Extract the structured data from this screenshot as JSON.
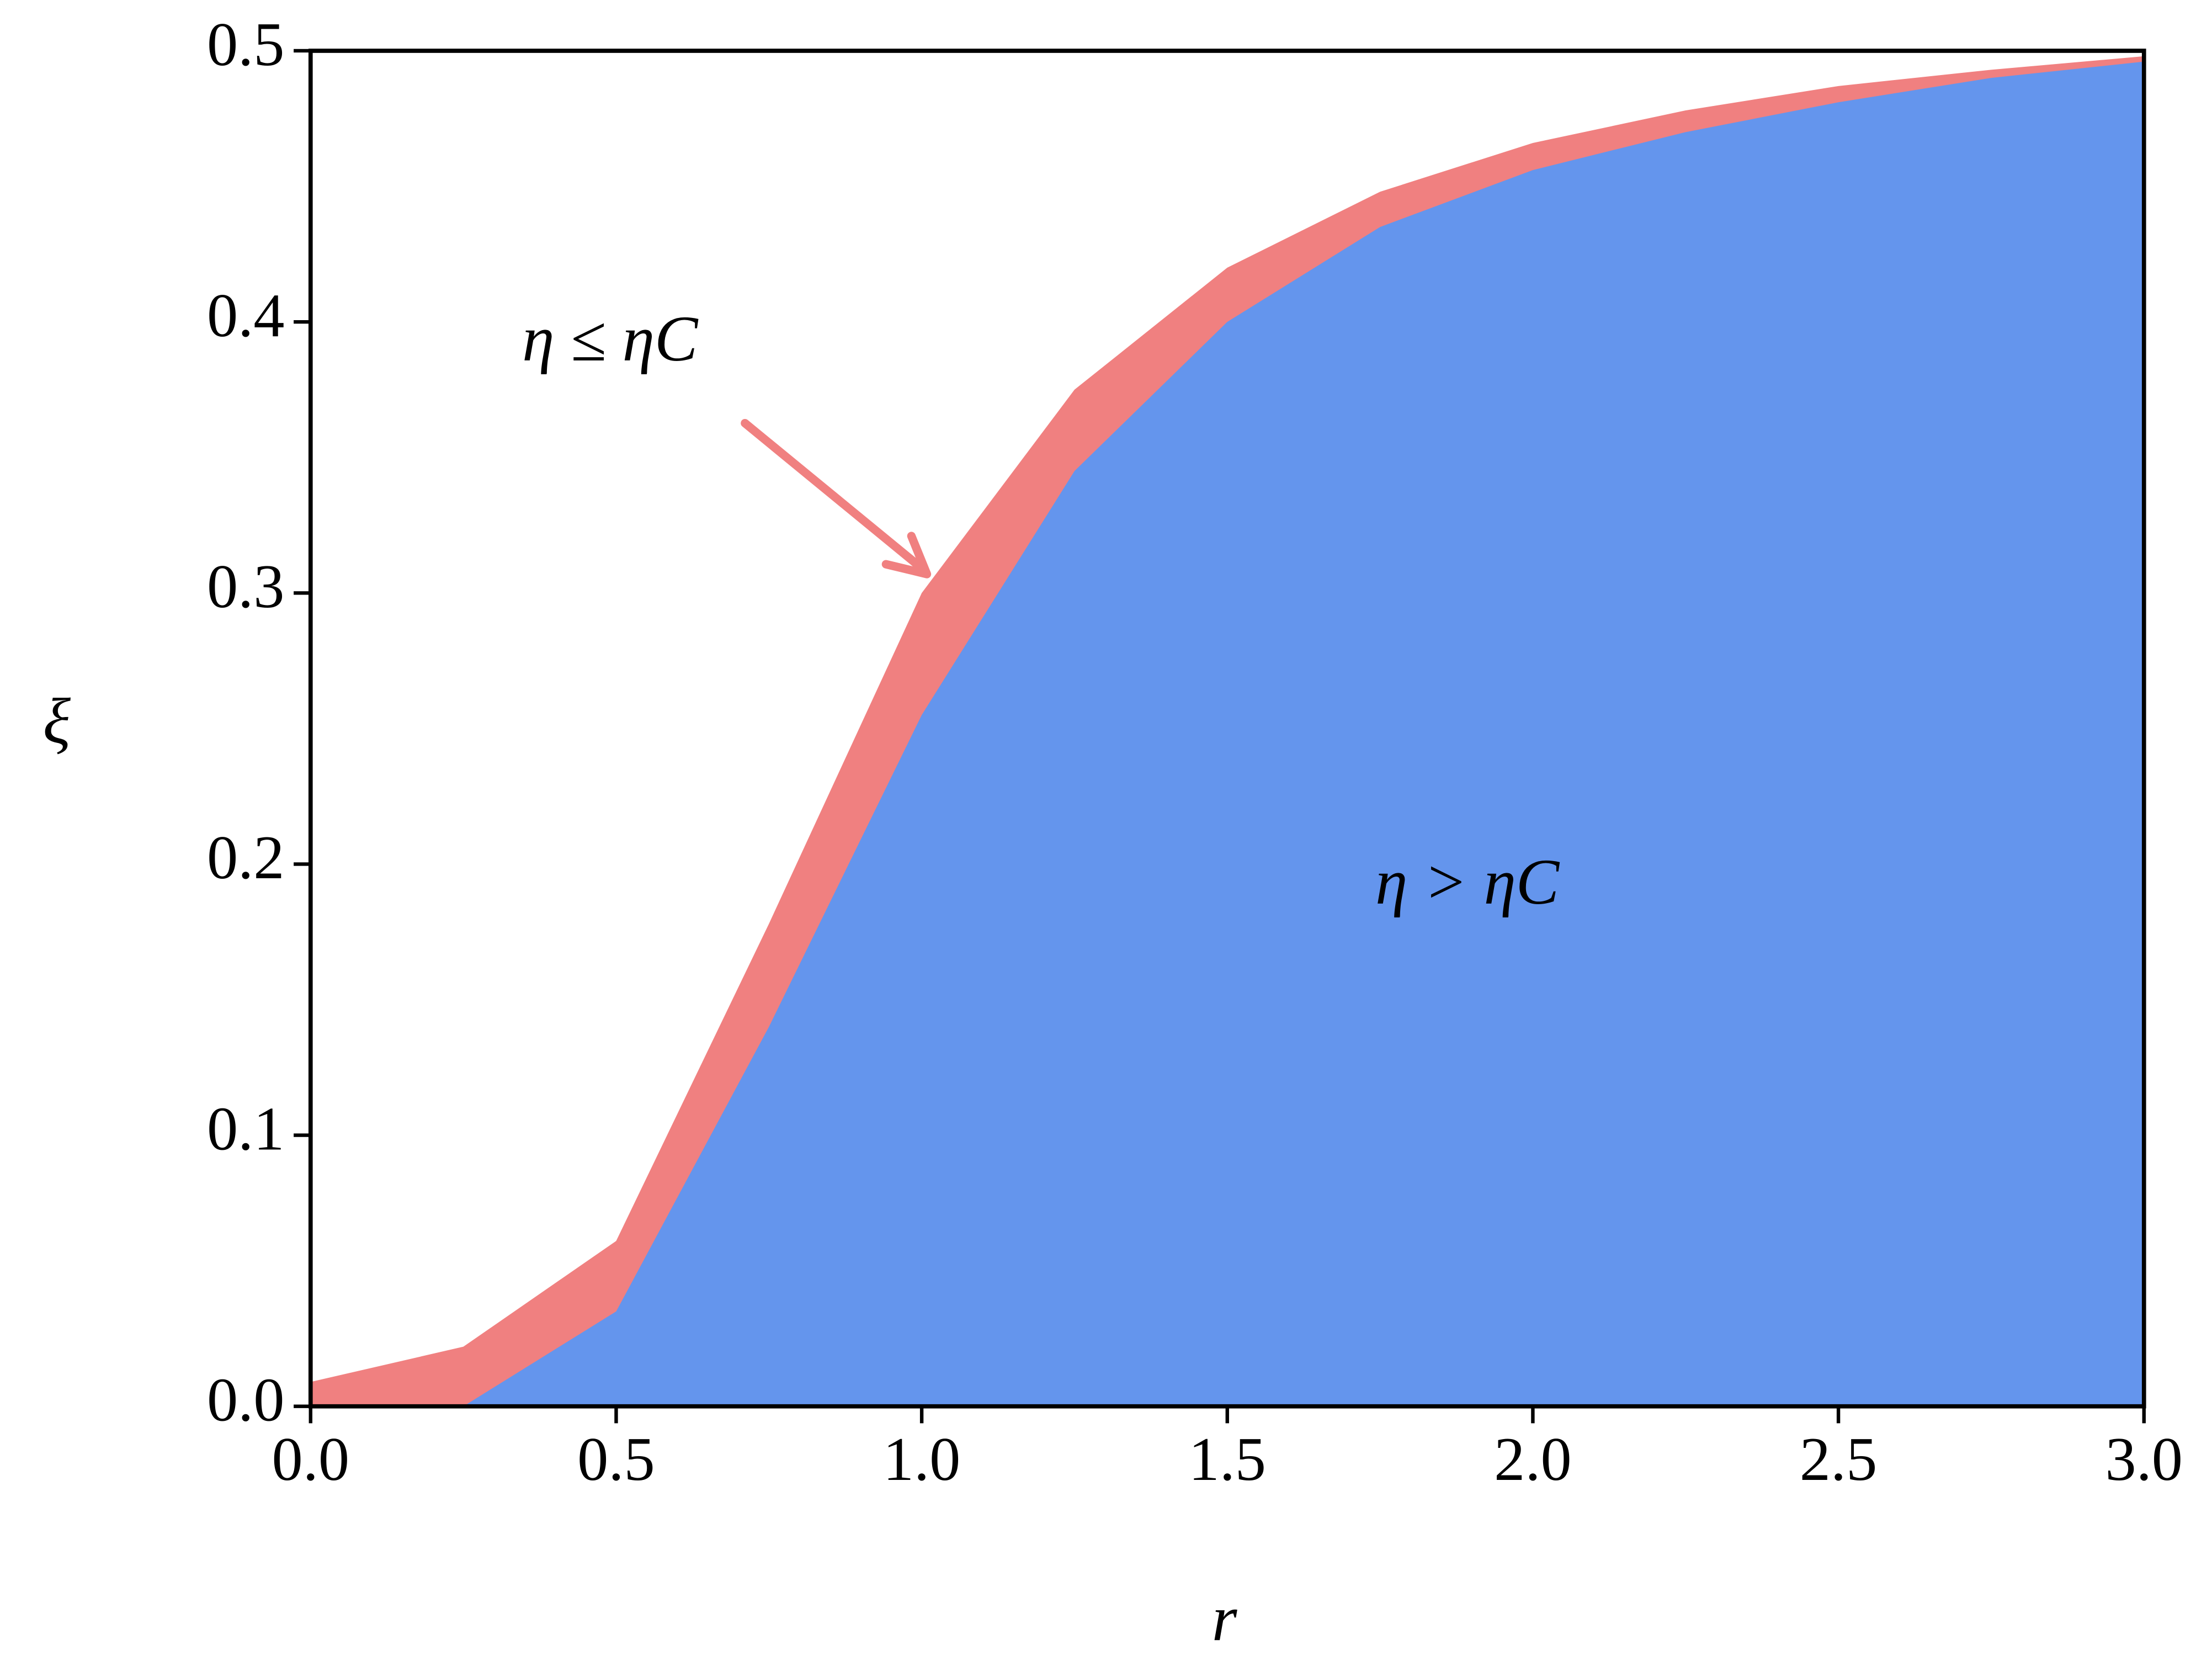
{
  "chart_data": {
    "type": "area",
    "x_label": "r",
    "y_label": "ξ",
    "x": [
      0,
      0.25,
      0.5,
      0.75,
      1.0,
      1.25,
      1.5,
      1.75,
      2.0,
      2.25,
      2.5,
      2.75,
      3.0
    ],
    "series": [
      {
        "color": "#f08080",
        "values": [
          0.009,
          0.022,
          0.061,
          0.178,
          0.3,
          0.375,
          0.42,
          0.448,
          0.466,
          0.478,
          0.487,
          0.493,
          0.498
        ]
      },
      {
        "color": "#6495ed",
        "values": [
          0,
          0,
          0.035,
          0.14,
          0.255,
          0.345,
          0.4,
          0.435,
          0.456,
          0.47,
          0.481,
          0.49,
          0.496
        ]
      }
    ],
    "annotations": [
      "η ≤ ηC",
      "η > ηC"
    ],
    "annotation_arrow_color": "#f08080",
    "xlim": [
      0,
      3
    ],
    "ylim": [
      0,
      0.5
    ],
    "xticks": [
      {
        "value": 0,
        "label": "0.0"
      },
      0.5,
      {
        "value": 1,
        "label": "1.0"
      },
      1.5,
      {
        "value": 2,
        "label": "2.0"
      },
      2.5,
      {
        "value": 3,
        "label": "3.0"
      }
    ],
    "yticks": [
      {
        "value": 0,
        "label": "0.0"
      },
      0.1,
      0.2,
      0.3,
      0.4,
      0.5
    ],
    "grid": false
  }
}
